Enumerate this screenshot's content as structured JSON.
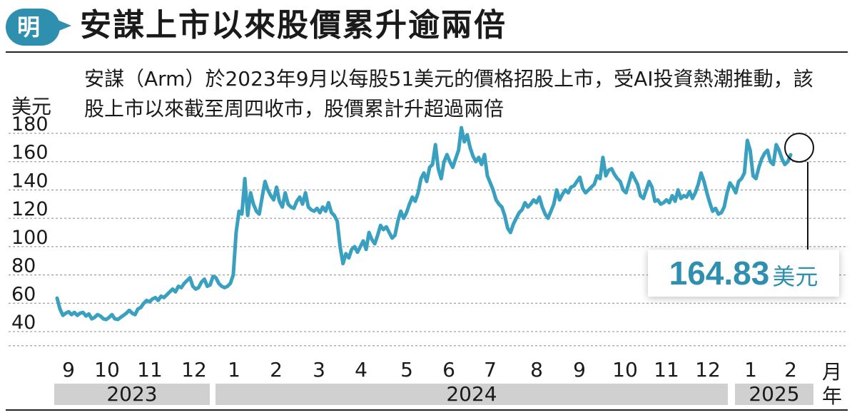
{
  "header": {
    "logo_char": "明",
    "title": "安謀上市以來股價累升逾兩倍"
  },
  "subtitle": "安謀（Arm）於2023年9月以每股51美元的價格招股上市，受AI投資熱潮推動，該股上市以來截至周四收市，股價累計升超過兩倍",
  "callout": {
    "value": "164.83",
    "unit": "美元"
  },
  "colors": {
    "line": "#3aa0c0",
    "accent": "#2e8fae",
    "grid": "#888888",
    "year_bar": "#d0d0d0"
  },
  "chart_data": {
    "type": "line",
    "title": "安謀上市以來股價累升逾兩倍",
    "ylabel": "美元",
    "ylim": [
      30,
      190
    ],
    "yticks": [
      40,
      60,
      80,
      100,
      120,
      140,
      160,
      180
    ],
    "grid": true,
    "x_month_unit": "月",
    "x_year_unit": "年",
    "months": [
      "9",
      "10",
      "11",
      "12",
      "1",
      "2",
      "3",
      "4",
      "5",
      "6",
      "7",
      "8",
      "9",
      "10",
      "11",
      "12",
      "1",
      "2"
    ],
    "years": [
      "2023",
      "2024",
      "2025"
    ],
    "series": [
      {
        "values": [
          63.6,
          56,
          51.5,
          53,
          54,
          52,
          53.5,
          51.5,
          53,
          53.5,
          51,
          52.5,
          49,
          50,
          52,
          51,
          49,
          48.5,
          50,
          52,
          49,
          48.5,
          50,
          51.5,
          53,
          55,
          53,
          52,
          56,
          57,
          60,
          62,
          61,
          63,
          64,
          62,
          65,
          64,
          66,
          68,
          70,
          68,
          72,
          71,
          74,
          76,
          78,
          72,
          70,
          71,
          75,
          77,
          72,
          73,
          79,
          78,
          74,
          72,
          71,
          72,
          74,
          80,
          110,
          125,
          123,
          148,
          122,
          138,
          130,
          125,
          123,
          135,
          146,
          140,
          136,
          133,
          142,
          132,
          128,
          138,
          130,
          128,
          127,
          132,
          135,
          130,
          138,
          128,
          126,
          125,
          127,
          124,
          128,
          125,
          131,
          124,
          122,
          118,
          100,
          88,
          95,
          92,
          98,
          100,
          96,
          100,
          104,
          98,
          110,
          105,
          102,
          108,
          115,
          112,
          114,
          110,
          106,
          108,
          118,
          125,
          120,
          124,
          130,
          135,
          132,
          138,
          148,
          152,
          146,
          156,
          158,
          172,
          155,
          148,
          160,
          165,
          160,
          156,
          162,
          168,
          184,
          174,
          179,
          170,
          164,
          160,
          163,
          158,
          165,
          150,
          145,
          140,
          133,
          130,
          128,
          122,
          113,
          110,
          116,
          120,
          124,
          126,
          131,
          128,
          130,
          133,
          131,
          135,
          128,
          123,
          120,
          125,
          130,
          140,
          133,
          137,
          140,
          138,
          142,
          143,
          146,
          149,
          141,
          138,
          140,
          142,
          144,
          150,
          148,
          163,
          150,
          154,
          155,
          151,
          148,
          146,
          140,
          138,
          145,
          152,
          148,
          144,
          136,
          134,
          140,
          146,
          142,
          132,
          133,
          130,
          131,
          133,
          131,
          136,
          132,
          140,
          134,
          136,
          135,
          139,
          134,
          138,
          144,
          152,
          146,
          138,
          131,
          125,
          127,
          123,
          124,
          128,
          138,
          145,
          142,
          138,
          146,
          148,
          152,
          175,
          168,
          150,
          148,
          156,
          162,
          166,
          168,
          160,
          158,
          172,
          168,
          162,
          158,
          160,
          164.83
        ]
      }
    ],
    "last_value": 164.83
  }
}
